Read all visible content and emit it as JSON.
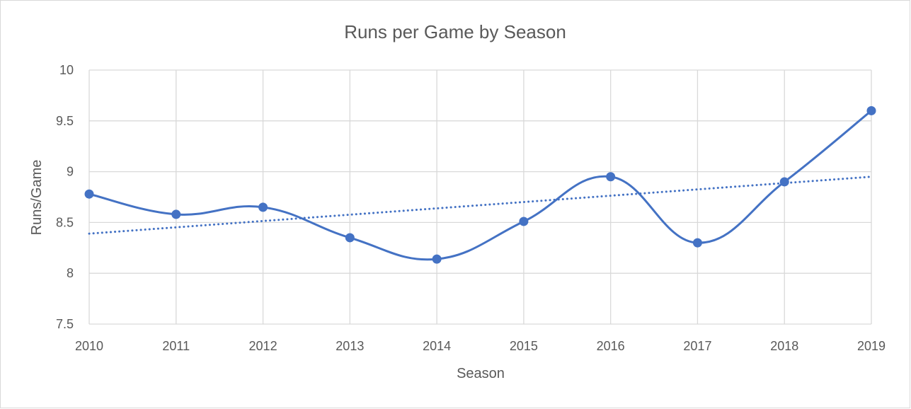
{
  "chart_data": {
    "type": "line",
    "title": "Runs per Game by Season",
    "xlabel": "Season",
    "ylabel": "Runs/Game",
    "categories": [
      "2010",
      "2011",
      "2012",
      "2013",
      "2014",
      "2015",
      "2016",
      "2017",
      "2018",
      "2019"
    ],
    "ylim": [
      7.5,
      10
    ],
    "yticks": [
      "7.5",
      "8",
      "8.5",
      "9",
      "9.5",
      "10"
    ],
    "series": [
      {
        "values": [
          8.78,
          8.58,
          8.65,
          8.35,
          8.14,
          8.51,
          8.95,
          8.3,
          8.9,
          9.6
        ]
      }
    ],
    "trendline": {
      "type": "linear",
      "style": "dotted",
      "values": [
        8.39,
        8.95
      ]
    },
    "grid": true,
    "legend": "none",
    "colors": {
      "series": "#4472c4",
      "grid": "#d9d9d9",
      "text": "#595959"
    }
  }
}
